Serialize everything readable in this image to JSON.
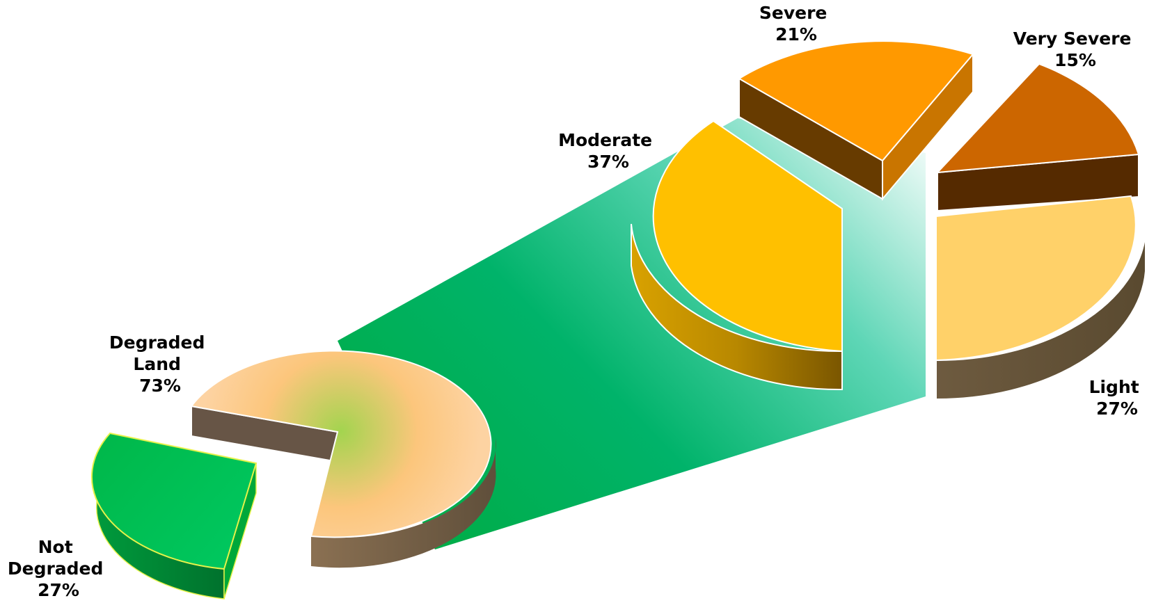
{
  "chart_data": [
    {
      "type": "pie",
      "title": "",
      "slices": [
        {
          "label_lines": [
            "Not",
            "Degraded"
          ],
          "percent_label": "27%",
          "value": 27
        },
        {
          "label_lines": [
            "Degraded",
            "Land"
          ],
          "percent_label": "73%",
          "value": 73
        }
      ]
    },
    {
      "type": "pie",
      "title": "",
      "breakdown_of": "Degraded Land",
      "slices": [
        {
          "label_lines": [
            "Moderate"
          ],
          "percent_label": "37%",
          "value": 37
        },
        {
          "label_lines": [
            "Severe"
          ],
          "percent_label": "21%",
          "value": 21
        },
        {
          "label_lines": [
            "Very Severe"
          ],
          "percent_label": "15%",
          "value": 15
        },
        {
          "label_lines": [
            "Light"
          ],
          "percent_label": "27%",
          "value": 27
        }
      ]
    }
  ],
  "colors": {
    "not_degraded": "#00c853",
    "degraded_land": "#fdc98a",
    "moderate": "#ffc000",
    "severe": "#ff9900",
    "very_severe": "#cc6600",
    "light": "#ffd169",
    "connector": "#00b050"
  }
}
